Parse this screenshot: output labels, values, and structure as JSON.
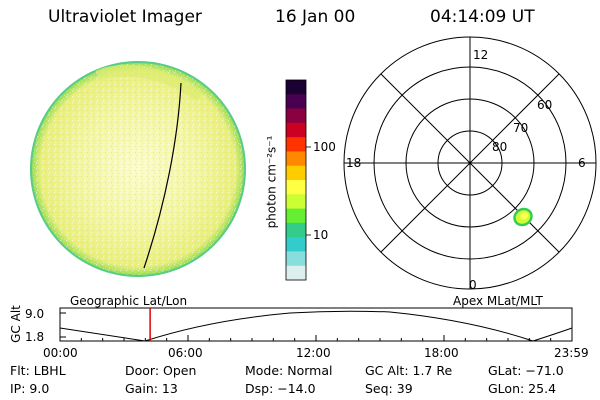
{
  "header": {
    "title": "Ultraviolet Imager",
    "date": "16 Jan 00",
    "time": "04:14:09 UT"
  },
  "colorbar": {
    "unit_label": "photon cm⁻²s⁻¹",
    "ticks": [
      "100",
      "10"
    ],
    "colors": [
      "#1a0033",
      "#4a0050",
      "#8a0040",
      "#cc0022",
      "#ff3300",
      "#ff8800",
      "#ffcc00",
      "#ffff44",
      "#ccff33",
      "#66ee33",
      "#33cc88",
      "#33cccc",
      "#88dddd",
      "#ddeeee"
    ]
  },
  "polar_plot": {
    "mlt_labels": [
      "12",
      "18",
      "6",
      "0"
    ],
    "lat_labels": [
      "60",
      "70",
      "80"
    ]
  },
  "orbit_panel": {
    "left_label": "Geographic Lat/Lon",
    "right_label": "Apex MLat/MLT",
    "y_axis_label": "GC Alt",
    "y_ticks": [
      "9.0",
      "1.8"
    ],
    "x_ticks": [
      "00:00",
      "06:00",
      "12:00",
      "18:00",
      "23:59"
    ],
    "current_time_fraction": 0.176
  },
  "status": {
    "flt": "Flt: LBHL",
    "door": "Door: Open",
    "mode": "Mode: Normal",
    "gc_alt": "GC Alt: 1.7 Re",
    "glat": "GLat: −71.0",
    "ip": "IP:  9.0",
    "gain": "Gain: 13",
    "dsp": "Dsp:   −14.0",
    "seq": "Seq: 39",
    "glon": "GLon:  25.4"
  },
  "colors": {
    "background": "#ffffff",
    "disk_fill": "#f2f49a",
    "disk_edge": "#44cc88",
    "marker_red": "#dd0000"
  }
}
